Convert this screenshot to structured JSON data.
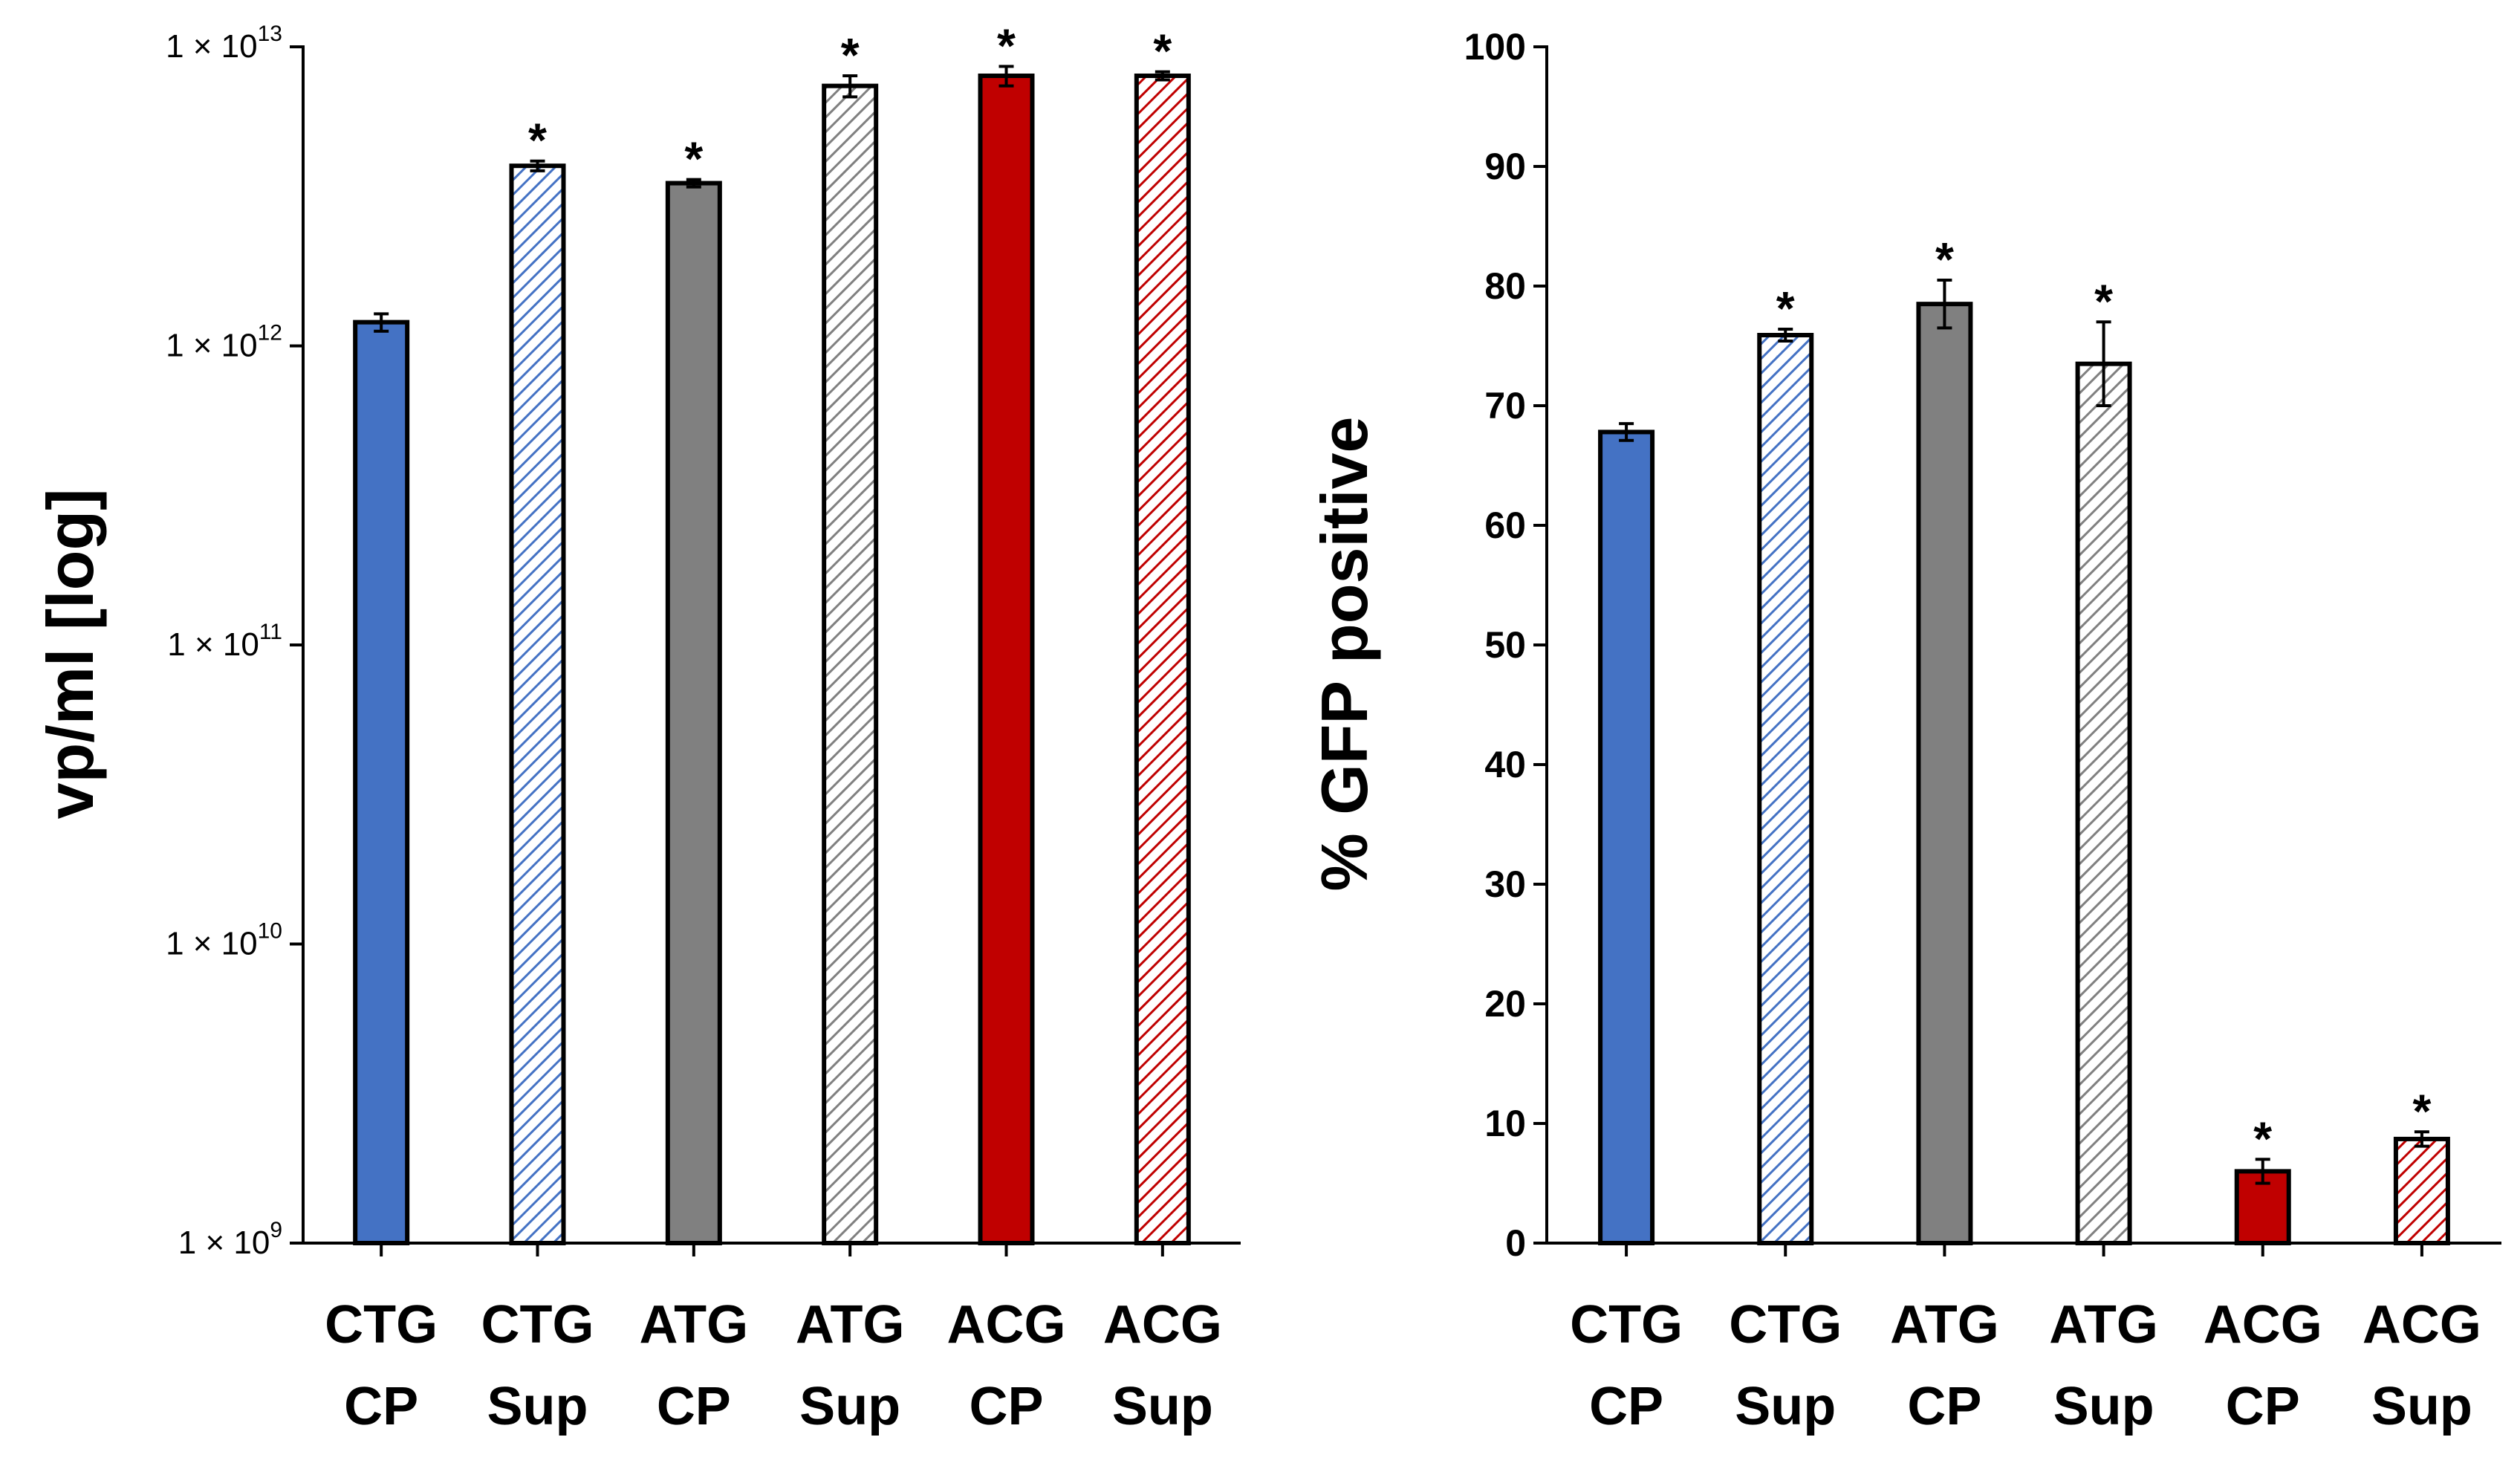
{
  "chart_data": [
    {
      "type": "bar",
      "yscale": "log",
      "ylabel": "vp/ml [log]",
      "ylim": [
        1000000000.0,
        10000000000000.0
      ],
      "yticks": [
        {
          "value": 1000000000.0,
          "mantissa": "1 × 10",
          "exp": "9"
        },
        {
          "value": 10000000000.0,
          "mantissa": "1 × 10",
          "exp": "10"
        },
        {
          "value": 100000000000.0,
          "mantissa": "1 × 10",
          "exp": "11"
        },
        {
          "value": 1000000000000.0,
          "mantissa": "1 × 10",
          "exp": "12"
        },
        {
          "value": 10000000000000.0,
          "mantissa": "1 × 10",
          "exp": "13"
        }
      ],
      "categories": [
        {
          "line1": "CTG",
          "line2": "CP"
        },
        {
          "line1": "CTG",
          "line2": "Sup"
        },
        {
          "line1": "ATG",
          "line2": "CP"
        },
        {
          "line1": "ATG",
          "line2": "Sup"
        },
        {
          "line1": "ACG",
          "line2": "CP"
        },
        {
          "line1": "ACG",
          "line2": "Sup"
        }
      ],
      "values": [
        1200000000000.0,
        4000000000000.0,
        3500000000000.0,
        7400000000000.0,
        8000000000000.0,
        8000000000000.0
      ],
      "errors": [
        80000000000.0,
        150000000000.0,
        100000000000.0,
        600000000000.0,
        600000000000.0,
        250000000000.0
      ],
      "significant": [
        false,
        true,
        true,
        true,
        true,
        true
      ],
      "significance_marker": "*",
      "styles": [
        {
          "fill": "#4472c4",
          "pattern": "solid"
        },
        {
          "fill": "#4472c4",
          "pattern": "hatch"
        },
        {
          "fill": "#808080",
          "pattern": "solid"
        },
        {
          "fill": "#808080",
          "pattern": "hatch"
        },
        {
          "fill": "#c00000",
          "pattern": "solid"
        },
        {
          "fill": "#c00000",
          "pattern": "hatch"
        }
      ]
    },
    {
      "type": "bar",
      "yscale": "linear",
      "ylabel": "% GFP positive",
      "ylim": [
        0,
        100
      ],
      "yticks": [
        {
          "value": 0,
          "label": "0"
        },
        {
          "value": 10,
          "label": "10"
        },
        {
          "value": 20,
          "label": "20"
        },
        {
          "value": 30,
          "label": "30"
        },
        {
          "value": 40,
          "label": "40"
        },
        {
          "value": 50,
          "label": "50"
        },
        {
          "value": 60,
          "label": "60"
        },
        {
          "value": 70,
          "label": "70"
        },
        {
          "value": 80,
          "label": "80"
        },
        {
          "value": 90,
          "label": "90"
        },
        {
          "value": 100,
          "label": "100"
        }
      ],
      "categories": [
        {
          "line1": "CTG",
          "line2": "CP"
        },
        {
          "line1": "CTG",
          "line2": "Sup"
        },
        {
          "line1": "ATG",
          "line2": "CP"
        },
        {
          "line1": "ATG",
          "line2": "Sup"
        },
        {
          "line1": "ACG",
          "line2": "CP"
        },
        {
          "line1": "ACG",
          "line2": "Sup"
        }
      ],
      "values": [
        67.8,
        75.9,
        78.5,
        73.5,
        6.0,
        8.7
      ],
      "errors": [
        0.7,
        0.5,
        2.0,
        3.5,
        1.0,
        0.6
      ],
      "significant": [
        false,
        true,
        true,
        true,
        true,
        true
      ],
      "significance_marker": "*",
      "styles": [
        {
          "fill": "#4472c4",
          "pattern": "solid"
        },
        {
          "fill": "#4472c4",
          "pattern": "hatch"
        },
        {
          "fill": "#808080",
          "pattern": "solid"
        },
        {
          "fill": "#808080",
          "pattern": "hatch"
        },
        {
          "fill": "#c00000",
          "pattern": "solid"
        },
        {
          "fill": "#c00000",
          "pattern": "hatch"
        }
      ]
    }
  ]
}
